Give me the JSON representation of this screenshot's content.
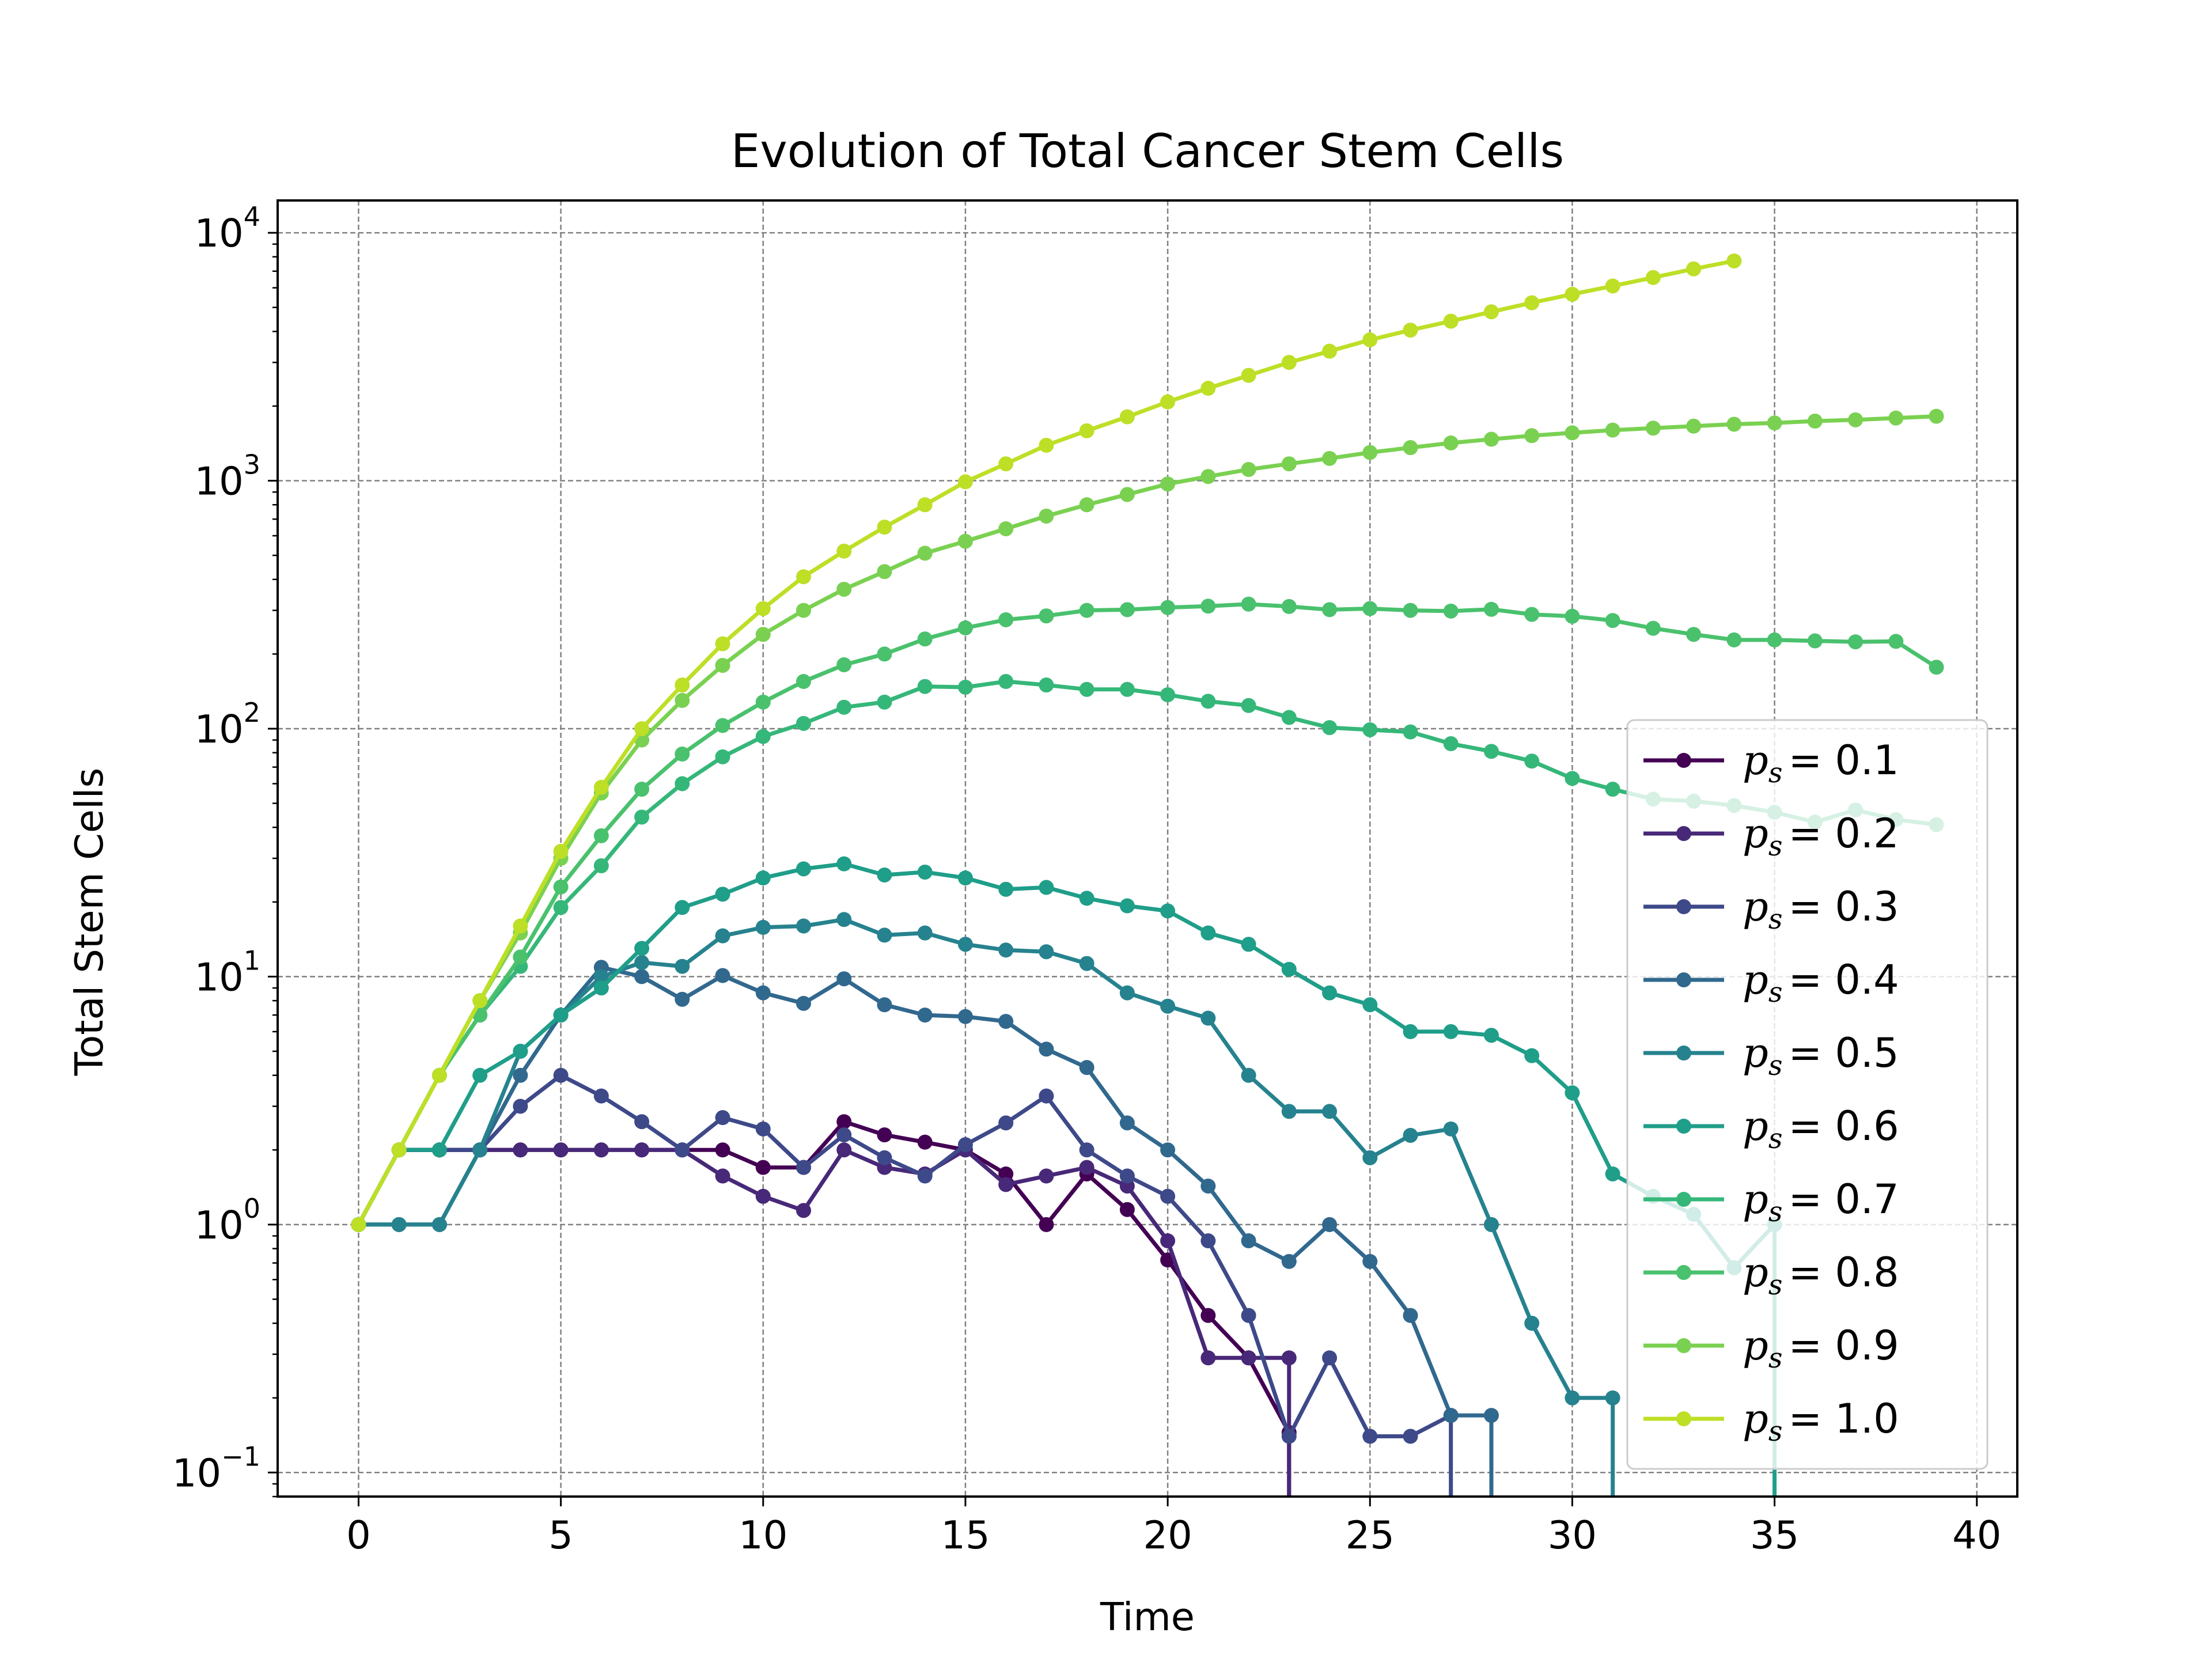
{
  "chart_data": {
    "type": "line",
    "title": "Evolution of Total Cancer Stem Cells",
    "xlabel": "Time",
    "ylabel": "Total Stem Cells",
    "xlim": [
      -2,
      41
    ],
    "ylim": [
      0.08,
      13500
    ],
    "yscale": "log",
    "x_ticks": [
      0,
      5,
      10,
      15,
      20,
      25,
      30,
      35,
      40
    ],
    "y_ticks": [
      {
        "value": 0.1,
        "base": "10",
        "exp": "−1"
      },
      {
        "value": 1,
        "base": "10",
        "exp": "0"
      },
      {
        "value": 10,
        "base": "10",
        "exp": "1"
      },
      {
        "value": 100,
        "base": "10",
        "exp": "2"
      },
      {
        "value": 1000,
        "base": "10",
        "exp": "3"
      },
      {
        "value": 10000,
        "base": "10",
        "exp": "4"
      }
    ],
    "grid": true,
    "legend_position": "lower-right",
    "legend_symbol": "p",
    "legend_subscript": "s",
    "series": [
      {
        "label": "= 0.1",
        "color": "#440154",
        "x": [
          0,
          1,
          2,
          3,
          4,
          5,
          6,
          7,
          8,
          9,
          10,
          11,
          12,
          13,
          14,
          15,
          16,
          17,
          18,
          19,
          20,
          21,
          22,
          23
        ],
        "y": [
          1,
          2,
          2,
          2,
          2,
          2,
          2,
          2,
          2,
          2,
          1.7,
          1.7,
          2.6,
          2.3,
          2.15,
          2.0,
          1.6,
          1.0,
          1.6,
          1.15,
          0.72,
          0.43,
          0.29,
          0.145
        ]
      },
      {
        "label": "= 0.2",
        "color": "#482878",
        "x": [
          0,
          1,
          2,
          3,
          4,
          5,
          6,
          7,
          8,
          9,
          10,
          11,
          12,
          13,
          14,
          15,
          16,
          17,
          18,
          19,
          20,
          21,
          22,
          23
        ],
        "y": [
          1,
          2,
          2,
          2,
          2,
          2,
          2,
          2,
          2,
          1.57,
          1.3,
          1.14,
          2.0,
          1.7,
          1.6,
          2.0,
          1.45,
          1.57,
          1.7,
          1.43,
          0.86,
          0.29,
          0.29,
          0.29
        ]
      },
      {
        "label": "= 0.3",
        "color": "#3e4989",
        "x": [
          0,
          1,
          2,
          3,
          4,
          5,
          6,
          7,
          8,
          9,
          10,
          11,
          12,
          13,
          14,
          15,
          16,
          17,
          18,
          19,
          20,
          21,
          22,
          23,
          24,
          25,
          26,
          27
        ],
        "y": [
          1,
          2,
          2,
          2,
          3,
          4,
          3.3,
          2.6,
          2.0,
          2.7,
          2.43,
          1.7,
          2.3,
          1.86,
          1.57,
          2.1,
          2.57,
          3.3,
          2.0,
          1.57,
          1.3,
          0.86,
          0.43,
          0.14,
          0.29,
          0.14,
          0.14,
          0.17
        ]
      },
      {
        "label": "= 0.4",
        "color": "#31688e",
        "x": [
          0,
          1,
          2,
          3,
          4,
          5,
          6,
          7,
          8,
          9,
          10,
          11,
          12,
          13,
          14,
          15,
          16,
          17,
          18,
          19,
          20,
          21,
          22,
          23,
          24,
          25,
          26,
          27,
          28
        ],
        "y": [
          1,
          1,
          1,
          2,
          4,
          7,
          10.9,
          10,
          8.1,
          10.1,
          8.6,
          7.8,
          9.8,
          7.7,
          7.0,
          6.9,
          6.6,
          5.1,
          4.3,
          2.57,
          2.0,
          1.43,
          0.86,
          0.71,
          1.0,
          0.71,
          0.43,
          0.17,
          0.17
        ]
      },
      {
        "label": "= 0.5",
        "color": "#26828e",
        "x": [
          0,
          1,
          2,
          3,
          4,
          5,
          6,
          7,
          8,
          9,
          10,
          11,
          12,
          13,
          14,
          15,
          16,
          17,
          18,
          19,
          20,
          21,
          22,
          23,
          24,
          25,
          26,
          27,
          28,
          29,
          30,
          31
        ],
        "y": [
          1,
          1,
          1,
          2,
          5,
          7,
          10,
          11.4,
          11,
          14.6,
          15.8,
          16.0,
          17.0,
          14.7,
          15.0,
          13.5,
          12.8,
          12.6,
          11.3,
          8.6,
          7.6,
          6.8,
          4.0,
          2.86,
          2.86,
          1.86,
          2.29,
          2.43,
          1.0,
          0.4,
          0.2,
          0.2
        ]
      },
      {
        "label": "= 0.6",
        "color": "#1f9e89",
        "x": [
          0,
          1,
          2,
          3,
          4,
          5,
          6,
          7,
          8,
          9,
          10,
          11,
          12,
          13,
          14,
          15,
          16,
          17,
          18,
          19,
          20,
          21,
          22,
          23,
          24,
          25,
          26,
          27,
          28,
          29,
          30,
          31,
          32,
          33,
          34,
          35
        ],
        "y": [
          1,
          2,
          2,
          4,
          5,
          7,
          9,
          13,
          19,
          21.5,
          25,
          27.2,
          28.5,
          25.7,
          26.4,
          25,
          22.5,
          22.9,
          20.7,
          19.3,
          18.4,
          15,
          13.5,
          10.7,
          8.6,
          7.7,
          6,
          6,
          5.8,
          4.8,
          3.4,
          1.6,
          1.3,
          1.1,
          0.67,
          1.0
        ]
      },
      {
        "label": "= 0.7",
        "color": "#35b779",
        "x": [
          0,
          1,
          2,
          3,
          4,
          5,
          6,
          7,
          8,
          9,
          10,
          11,
          12,
          13,
          14,
          15,
          16,
          17,
          18,
          19,
          20,
          21,
          22,
          23,
          24,
          25,
          26,
          27,
          28,
          29,
          30,
          31,
          32,
          33,
          34,
          35,
          36,
          37,
          38,
          39
        ],
        "y": [
          1,
          2,
          4,
          7,
          11,
          19,
          28,
          44,
          60,
          77,
          93,
          105,
          122,
          128,
          148,
          147,
          155,
          150,
          144,
          144,
          137,
          129,
          124,
          111,
          101,
          99,
          97,
          87,
          81,
          74,
          63,
          57,
          52,
          51,
          49,
          46,
          42,
          47,
          43,
          41
        ]
      },
      {
        "label": "= 0.8",
        "color": "#4ac16d",
        "x": [
          0,
          1,
          2,
          3,
          4,
          5,
          6,
          7,
          8,
          9,
          10,
          11,
          12,
          13,
          14,
          15,
          16,
          17,
          18,
          19,
          20,
          21,
          22,
          23,
          24,
          25,
          26,
          27,
          28,
          29,
          30,
          31,
          32,
          33,
          34,
          35,
          36,
          37,
          38,
          39
        ],
        "y": [
          1,
          2,
          4,
          7,
          12,
          23,
          37,
          57,
          79,
          103,
          128,
          155,
          181,
          200,
          230,
          255,
          275,
          285,
          300,
          302,
          308,
          312,
          318,
          311,
          302,
          305,
          300,
          298,
          303,
          289,
          284,
          273,
          254,
          240,
          228,
          228,
          226,
          224,
          225,
          177
        ]
      },
      {
        "label": "= 0.9",
        "color": "#7ad151",
        "x": [
          0,
          1,
          2,
          3,
          4,
          5,
          6,
          7,
          8,
          9,
          10,
          11,
          12,
          13,
          14,
          15,
          16,
          17,
          18,
          19,
          20,
          21,
          22,
          23,
          24,
          25,
          26,
          27,
          28,
          29,
          30,
          31,
          32,
          33,
          34,
          35,
          36,
          37,
          38,
          39
        ],
        "y": [
          1,
          2,
          4,
          8,
          15,
          30,
          55,
          90,
          130,
          180,
          240,
          300,
          365,
          430,
          510,
          570,
          640,
          720,
          800,
          880,
          970,
          1040,
          1110,
          1170,
          1230,
          1300,
          1360,
          1420,
          1470,
          1520,
          1560,
          1600,
          1630,
          1660,
          1690,
          1710,
          1740,
          1760,
          1790,
          1820
        ]
      },
      {
        "label": "= 1.0",
        "color": "#bddf26",
        "x": [
          0,
          1,
          2,
          3,
          4,
          5,
          6,
          7,
          8,
          9,
          10,
          11,
          12,
          13,
          14,
          15,
          16,
          17,
          18,
          19,
          20,
          21,
          22,
          23,
          24,
          25,
          26,
          27,
          28,
          29,
          30,
          31,
          32,
          33,
          34
        ],
        "y": [
          1,
          2,
          4,
          8,
          16,
          32,
          58,
          100,
          150,
          220,
          305,
          410,
          520,
          650,
          800,
          990,
          1170,
          1390,
          1590,
          1810,
          2080,
          2360,
          2660,
          3000,
          3330,
          3700,
          4050,
          4400,
          4800,
          5220,
          5650,
          6100,
          6600,
          7150,
          7700
        ]
      }
    ]
  }
}
